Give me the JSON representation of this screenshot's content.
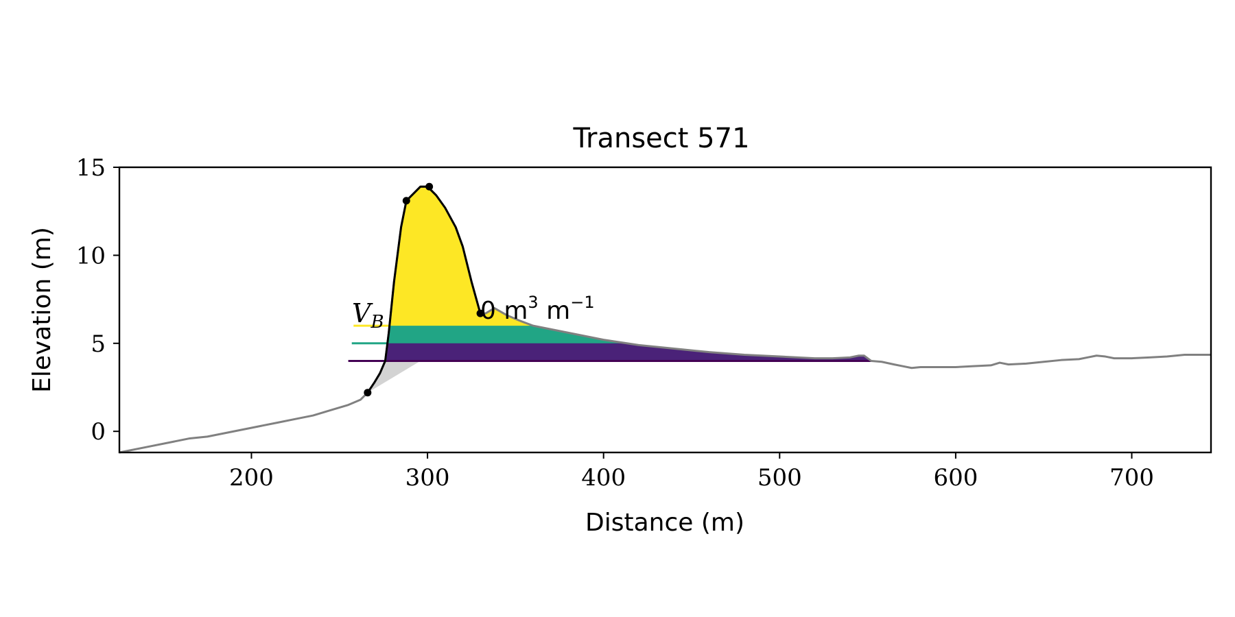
{
  "chart_data": {
    "type": "line",
    "title": "Transect 571",
    "xlabel": "Distance (m)",
    "ylabel": "Elevation (m)",
    "xlim": [
      125,
      745
    ],
    "ylim": [
      -1.2,
      15
    ],
    "xticks": [
      200,
      300,
      400,
      500,
      600,
      700
    ],
    "yticks": [
      0,
      5,
      10,
      15
    ],
    "grid": false,
    "colors": {
      "profile": "#808080",
      "dune": "#000000",
      "shade": "#d3d3d3",
      "yellow": "#fde725",
      "teal": "#21a585",
      "purple": "#440154",
      "purple_fill": "#4a2278"
    },
    "profile": {
      "x": [
        125,
        140,
        155,
        165,
        175,
        185,
        195,
        205,
        215,
        225,
        235,
        245,
        255,
        262,
        266,
        270,
        273,
        276,
        278,
        281,
        285,
        288,
        290,
        293,
        296,
        300,
        305,
        310,
        316,
        320,
        325,
        330,
        333,
        338,
        345,
        352,
        360,
        380,
        400,
        420,
        440,
        460,
        480,
        500,
        520,
        530,
        540,
        545,
        548,
        552,
        558,
        565,
        570,
        575,
        580,
        590,
        600,
        610,
        620,
        625,
        630,
        640,
        650,
        660,
        670,
        675,
        680,
        685,
        690,
        700,
        710,
        720,
        730,
        745
      ],
      "y": [
        -1.2,
        -0.9,
        -0.6,
        -0.4,
        -0.3,
        -0.1,
        0.1,
        0.3,
        0.5,
        0.7,
        0.9,
        1.2,
        1.5,
        1.8,
        2.2,
        2.8,
        3.3,
        4.0,
        5.6,
        8.5,
        11.6,
        13.1,
        13.3,
        13.6,
        13.9,
        13.9,
        13.4,
        12.7,
        11.6,
        10.5,
        8.5,
        6.7,
        6.7,
        7.0,
        6.6,
        6.3,
        6.0,
        5.6,
        5.2,
        4.9,
        4.7,
        4.5,
        4.35,
        4.25,
        4.15,
        4.15,
        4.2,
        4.3,
        4.3,
        4.0,
        3.95,
        3.8,
        3.7,
        3.6,
        3.65,
        3.65,
        3.65,
        3.7,
        3.75,
        3.9,
        3.8,
        3.85,
        3.95,
        4.05,
        4.1,
        4.2,
        4.3,
        4.25,
        4.15,
        4.15,
        4.2,
        4.25,
        4.35,
        4.35
      ]
    },
    "dune_points": [
      {
        "x": 266,
        "y": 2.2
      },
      {
        "x": 288,
        "y": 13.1
      },
      {
        "x": 301,
        "y": 13.9
      },
      {
        "x": 330,
        "y": 6.7
      }
    ],
    "volume_levels": [
      {
        "level": 6.0,
        "line_from": 258,
        "fill_color": "yellow",
        "line_color": "yellow"
      },
      {
        "level": 5.0,
        "line_from": 257,
        "fill_color": "teal",
        "line_color": "teal"
      },
      {
        "level": 4.0,
        "line_from": 255,
        "fill_color": "purple_fill",
        "line_color": "purple"
      }
    ],
    "shade_base": {
      "x1": 266,
      "y1": 2.2,
      "x2": 296,
      "y2": 4.0
    },
    "annotations": {
      "vb_label": "V",
      "vb_sub": "B",
      "value_text": "0 m",
      "unit_sup1": "3",
      "unit_mid": " m",
      "unit_sup2": "−1"
    }
  }
}
